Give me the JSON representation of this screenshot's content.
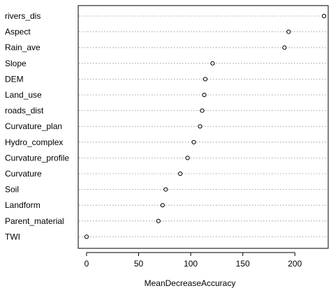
{
  "chart_data": {
    "type": "scatter",
    "title": "",
    "xlabel": "MeanDecreaseAccuracy",
    "ylabel": "",
    "xlim": [
      -8,
      232
    ],
    "xticks": [
      0,
      50,
      100,
      150,
      200
    ],
    "grid": "horizontal-dotted",
    "categories": [
      "rivers_dis",
      "Aspect",
      "Rain_ave",
      "Slope",
      "DEM",
      "Land_use",
      "roads_dist",
      "Curvature_plan",
      "Hydro_complex",
      "Curvature_profile",
      "Curvature",
      "Soil",
      "Landform",
      "Parent_material",
      "TWI"
    ],
    "values": [
      228,
      194,
      190,
      121,
      114,
      113,
      111,
      109,
      103,
      97,
      90,
      76,
      73,
      69,
      0
    ]
  }
}
